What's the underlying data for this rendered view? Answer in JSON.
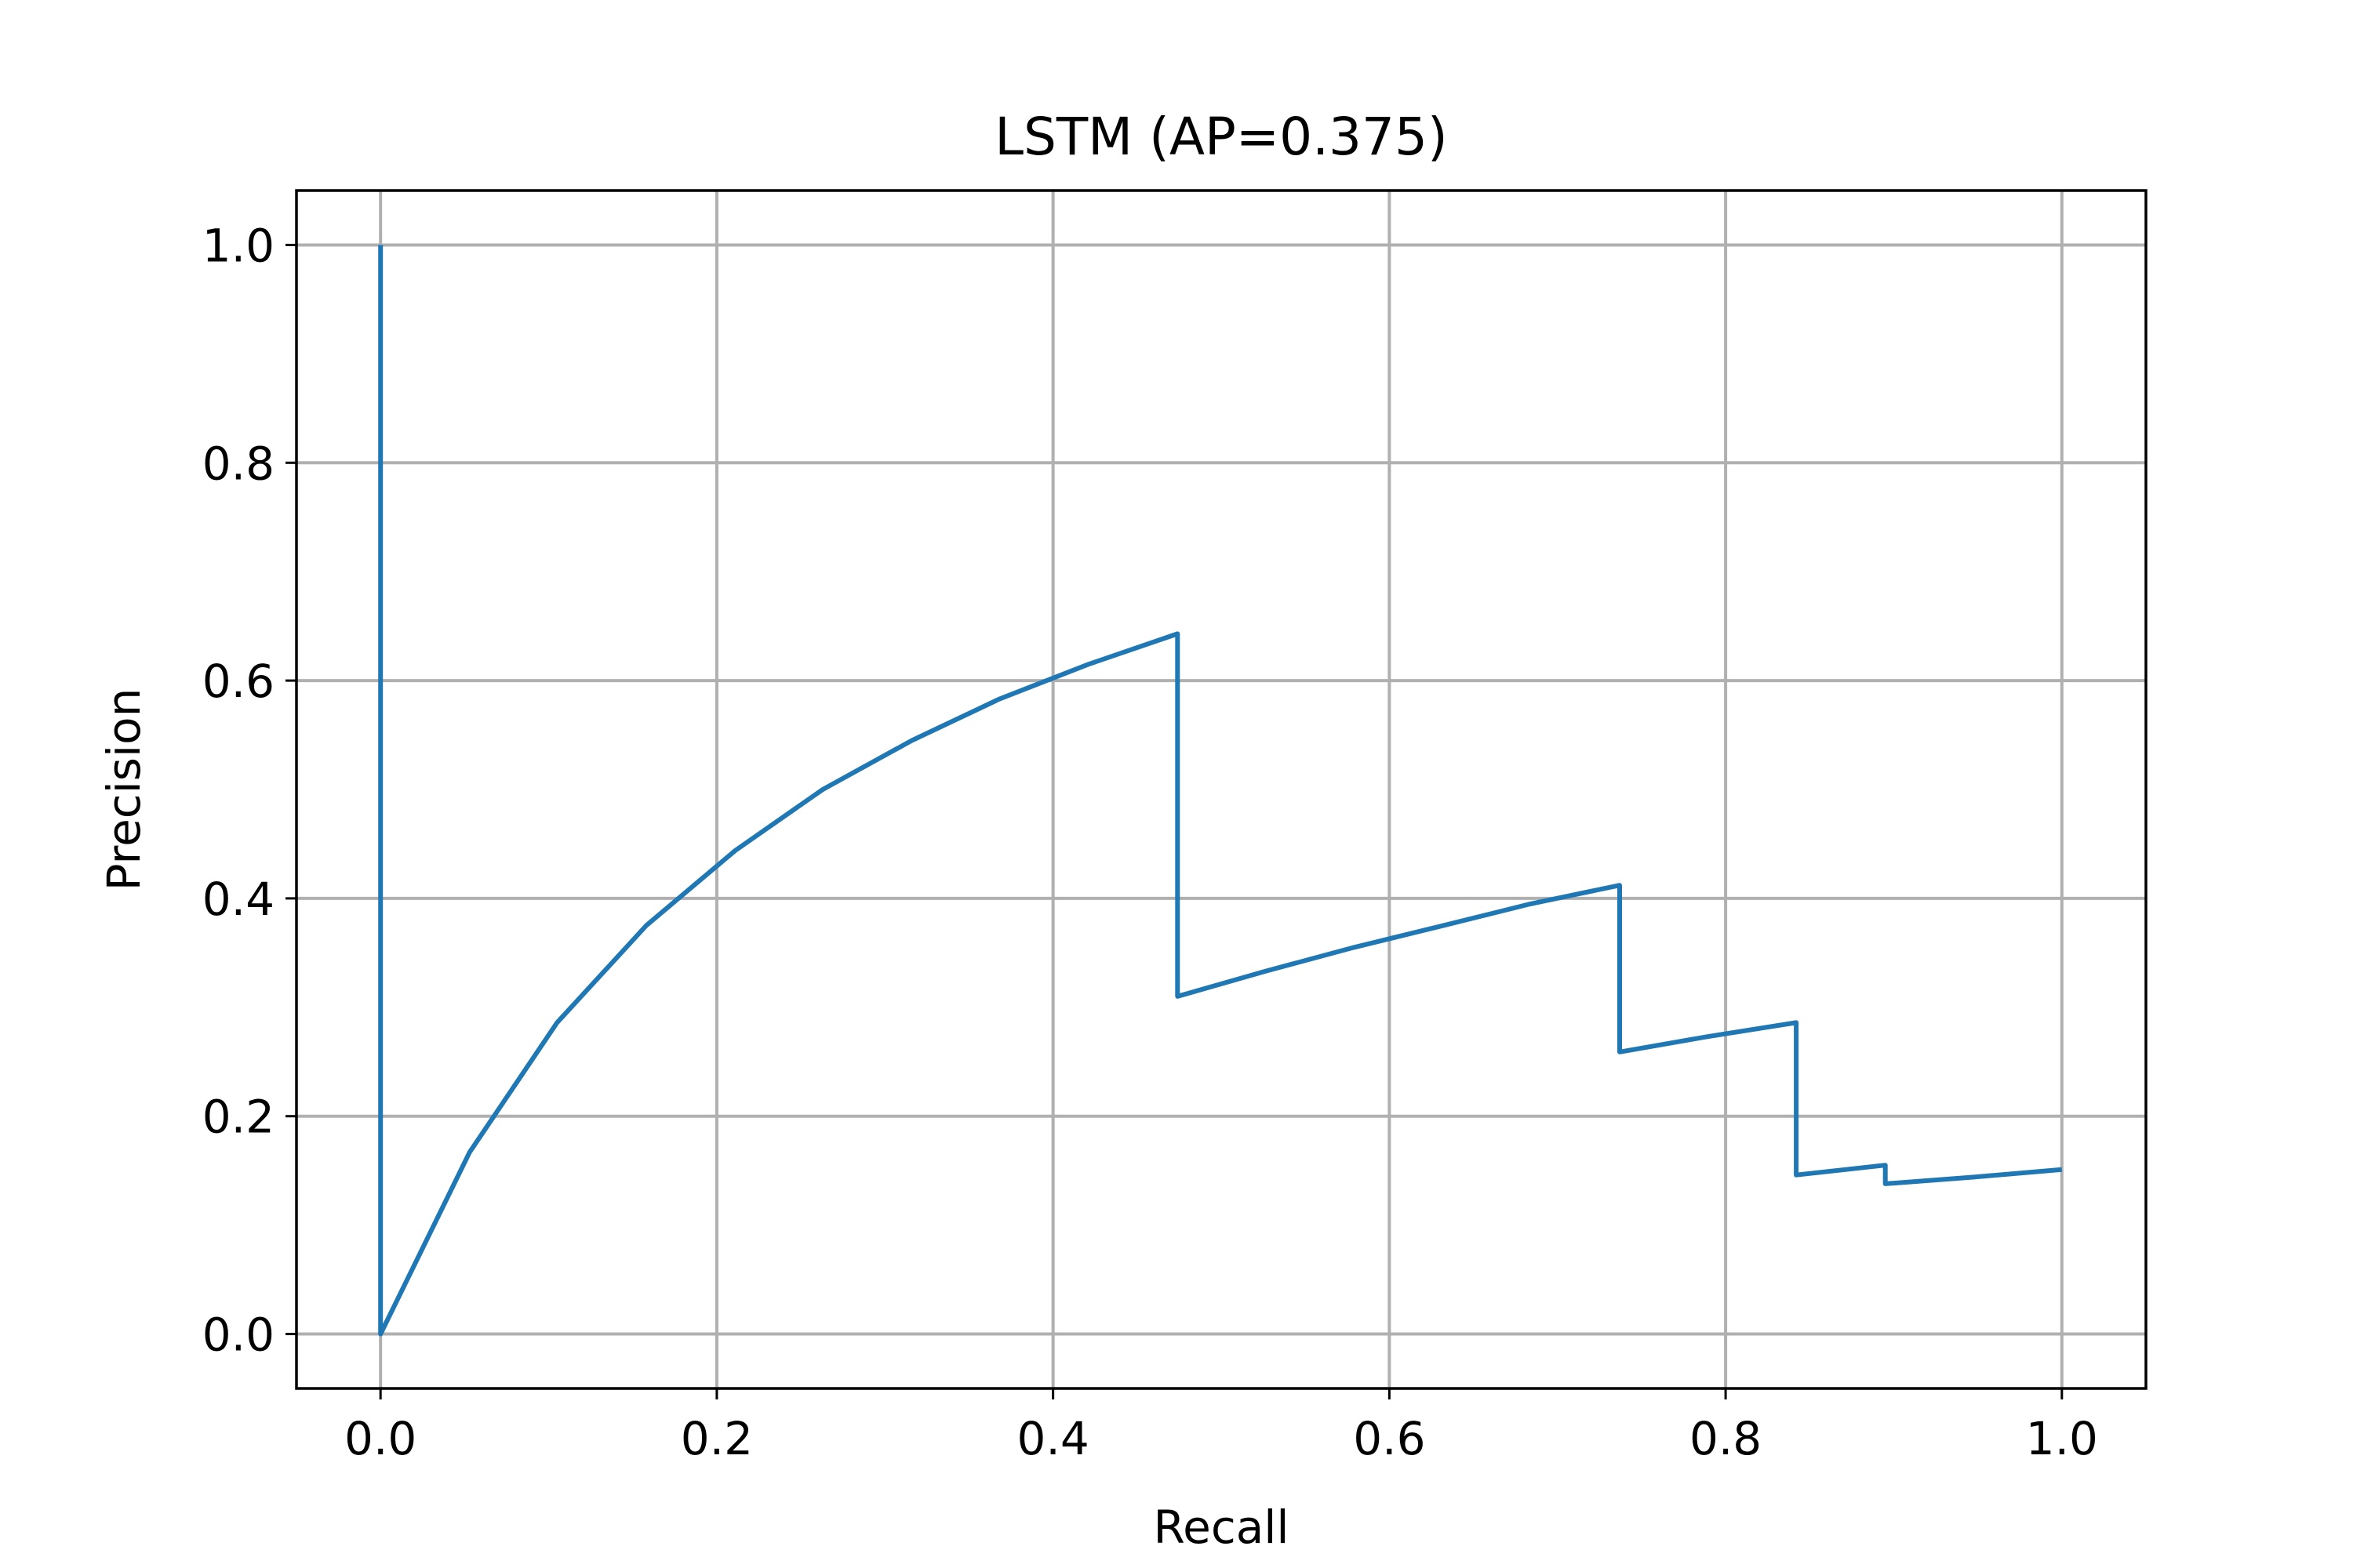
{
  "chart_data": {
    "type": "line",
    "title": "LSTM (AP=0.375)",
    "xlabel": "Recall",
    "ylabel": "Precision",
    "xlim": [
      -0.05,
      1.05
    ],
    "ylim": [
      -0.05,
      1.05
    ],
    "xticks": [
      0.0,
      0.2,
      0.4,
      0.6,
      0.8,
      1.0
    ],
    "xtick_labels": [
      "0.0",
      "0.2",
      "0.4",
      "0.6",
      "0.8",
      "1.0"
    ],
    "yticks": [
      0.0,
      0.2,
      0.4,
      0.6,
      0.8,
      1.0
    ],
    "ytick_labels": [
      "0.0",
      "0.2",
      "0.4",
      "0.6",
      "0.8",
      "1.0"
    ],
    "grid": true,
    "legend": "none",
    "series_color": "#1f77b4",
    "series": [
      {
        "x": [
          0.0,
          0.0,
          0.053,
          0.105,
          0.158,
          0.211,
          0.263,
          0.316,
          0.368,
          0.421,
          0.474,
          0.474,
          0.526,
          0.579,
          0.632,
          0.684,
          0.737,
          0.737,
          0.789,
          0.842,
          0.842,
          0.895,
          0.895,
          0.947,
          1.0
        ],
        "y": [
          1.0,
          0.0,
          0.167,
          0.286,
          0.375,
          0.444,
          0.5,
          0.545,
          0.583,
          0.615,
          0.643,
          0.31,
          0.333,
          0.355,
          0.375,
          0.395,
          0.412,
          0.259,
          0.273,
          0.286,
          0.146,
          0.155,
          0.138,
          0.144,
          0.151
        ]
      }
    ]
  }
}
